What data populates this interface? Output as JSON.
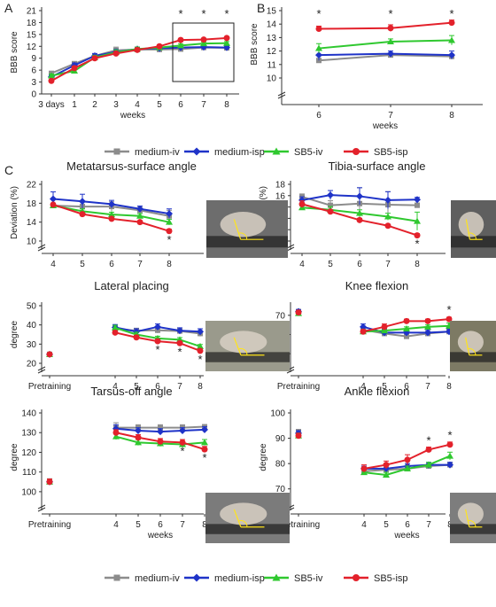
{
  "panel_letters": {
    "a": "A",
    "b": "B",
    "c": "C"
  },
  "colors": {
    "medium-iv": "#8c8c8c",
    "medium-isp": "#1f33c8",
    "SB5-iv": "#2fc82f",
    "SB5-isp": "#e3212b"
  },
  "legend": {
    "items": [
      {
        "key": "medium-iv",
        "label": "medium-iv",
        "marker": "square"
      },
      {
        "key": "medium-isp",
        "label": "medium-isp",
        "marker": "diamond"
      },
      {
        "key": "SB5-iv",
        "label": "SB5-iv",
        "marker": "triangle"
      },
      {
        "key": "SB5-isp",
        "label": "SB5-isp",
        "marker": "circle"
      }
    ]
  },
  "chart_data": [
    {
      "id": "A",
      "type": "line",
      "title": "",
      "xlabel": "weeks",
      "ylabel": "BBB score",
      "categories": [
        "3 days",
        "1",
        "2",
        "3",
        "4",
        "5",
        "6",
        "7",
        "8"
      ],
      "ylim": [
        0,
        21
      ],
      "yticks": [
        0,
        3,
        6,
        9,
        12,
        15,
        18,
        21
      ],
      "series": [
        {
          "name": "medium-iv",
          "values": [
            5.2,
            7.6,
            9.6,
            11.0,
            11.2,
            11.2,
            11.3,
            11.7,
            11.6
          ],
          "errors": [
            0.5,
            0.6,
            0.5,
            0.8,
            0.6,
            0.5,
            0.4,
            0.4,
            0.3
          ]
        },
        {
          "name": "medium-isp",
          "values": [
            4.3,
            7.2,
            9.6,
            10.6,
            11.3,
            11.5,
            11.7,
            11.8,
            11.7
          ],
          "errors": [
            0.4,
            0.6,
            0.6,
            0.6,
            0.5,
            0.4,
            0.4,
            0.4,
            0.4
          ]
        },
        {
          "name": "SB5-iv",
          "values": [
            4.6,
            5.8,
            9.2,
            10.5,
            11.3,
            11.7,
            12.2,
            12.7,
            12.8
          ],
          "errors": [
            0.4,
            0.5,
            0.5,
            0.6,
            0.5,
            0.4,
            0.4,
            0.4,
            0.4
          ]
        },
        {
          "name": "SB5-isp",
          "values": [
            3.3,
            6.5,
            9.0,
            10.2,
            11.1,
            12.0,
            13.6,
            13.7,
            14.1
          ],
          "errors": [
            0.3,
            0.5,
            0.5,
            0.5,
            0.5,
            0.4,
            0.3,
            0.3,
            0.3
          ]
        }
      ],
      "significance": [
        {
          "x": "6",
          "label": "*"
        },
        {
          "x": "7",
          "label": "*"
        },
        {
          "x": "8",
          "label": "*"
        }
      ]
    },
    {
      "id": "B",
      "type": "line",
      "title": "",
      "xlabel": "weeks",
      "ylabel": "BBB score",
      "categories": [
        "6",
        "7",
        "8"
      ],
      "ylim": [
        10,
        15
      ],
      "yticks": [
        10,
        11,
        12,
        13,
        14,
        15
      ],
      "series": [
        {
          "name": "medium-iv",
          "values": [
            11.3,
            11.7,
            11.6
          ],
          "errors": [
            0.15,
            0.1,
            0.1
          ]
        },
        {
          "name": "medium-isp",
          "values": [
            11.7,
            11.8,
            11.7
          ],
          "errors": [
            0.4,
            0.2,
            0.3
          ]
        },
        {
          "name": "SB5-iv",
          "values": [
            12.2,
            12.7,
            12.8
          ],
          "errors": [
            0.35,
            0.2,
            0.35
          ]
        },
        {
          "name": "SB5-isp",
          "values": [
            13.65,
            13.7,
            14.1
          ],
          "errors": [
            0.2,
            0.25,
            0.2
          ]
        }
      ],
      "significance": [
        {
          "x": "6",
          "label": "*"
        },
        {
          "x": "7",
          "label": "*"
        },
        {
          "x": "8",
          "label": "*"
        }
      ]
    },
    {
      "id": "C1",
      "type": "line",
      "title": "Metatarsus-surface angle",
      "xlabel": "",
      "ylabel": "Deviation (%)",
      "categories": [
        "4",
        "5",
        "6",
        "7",
        "8"
      ],
      "ylim": [
        10,
        22
      ],
      "yticks": [
        10,
        14,
        18,
        22
      ],
      "series": [
        {
          "name": "medium-iv",
          "values": [
            17.5,
            17.3,
            17.3,
            16.5,
            15.3
          ],
          "errors": [
            0.4,
            1.2,
            1.0,
            0.8,
            1.2
          ]
        },
        {
          "name": "medium-isp",
          "values": [
            18.9,
            18.4,
            17.8,
            16.8,
            15.8
          ],
          "errors": [
            1.5,
            1.5,
            0.8,
            0.6,
            1.0
          ]
        },
        {
          "name": "SB5-iv",
          "values": [
            17.5,
            16.3,
            15.6,
            15.3,
            14.0
          ],
          "errors": [
            0.4,
            0.5,
            0.5,
            0.5,
            0.6
          ]
        },
        {
          "name": "SB5-isp",
          "values": [
            17.7,
            15.7,
            14.7,
            14.0,
            12.1
          ],
          "errors": [
            0.3,
            0.3,
            0.3,
            0.3,
            0.4
          ]
        }
      ],
      "significance": [
        {
          "x": "8",
          "label": "*"
        }
      ]
    },
    {
      "id": "C2",
      "type": "line",
      "title": "Tibia-surface angle",
      "xlabel": "",
      "ylabel": "Deviation (%)",
      "categories": [
        "4",
        "5",
        "6",
        "7",
        "8"
      ],
      "ylim": [
        8,
        18
      ],
      "yticks": [
        8,
        10,
        12,
        14,
        16,
        18
      ],
      "series": [
        {
          "name": "medium-iv",
          "values": [
            15.8,
            14.3,
            14.6,
            14.4,
            14.3
          ],
          "errors": [
            0.5,
            0.8,
            2.8,
            2.3,
            0.4
          ]
        },
        {
          "name": "medium-isp",
          "values": [
            15.2,
            16.1,
            15.9,
            15.2,
            15.3
          ],
          "errors": [
            0.6,
            0.8,
            1.5,
            1.5,
            0.4
          ]
        },
        {
          "name": "SB5-iv",
          "values": [
            13.9,
            13.5,
            12.9,
            12.3,
            11.5
          ],
          "errors": [
            0.3,
            0.6,
            0.6,
            0.6,
            1.6
          ]
        },
        {
          "name": "SB5-isp",
          "values": [
            14.5,
            13.2,
            11.7,
            10.7,
            9.0
          ],
          "errors": [
            0.6,
            0.3,
            0.3,
            0.2,
            0.3
          ]
        }
      ],
      "significance": [
        {
          "x": "8",
          "label": "*"
        }
      ]
    },
    {
      "id": "C3",
      "type": "line",
      "title": "Lateral placing",
      "xlabel": "",
      "ylabel": "degree",
      "categories": [
        "Pretraining",
        "4",
        "5",
        "6",
        "7",
        "8"
      ],
      "ylim": [
        20,
        50
      ],
      "yticks": [
        20,
        30,
        40,
        50
      ],
      "series": [
        {
          "name": "medium-iv",
          "values": [
            24.7,
            38.0,
            37.0,
            37.2,
            36.8,
            35.5
          ],
          "errors": [
            0.5,
            1.5,
            1.3,
            1.5,
            1.5,
            1.5
          ]
        },
        {
          "name": "medium-isp",
          "values": [
            24.7,
            38.7,
            36.5,
            39.0,
            37.0,
            36.5
          ],
          "errors": [
            0.5,
            1.5,
            1.5,
            1.5,
            1.5,
            1.5
          ]
        },
        {
          "name": "SB5-iv",
          "values": [
            24.7,
            38.5,
            35.0,
            33.0,
            32.3,
            28.8
          ],
          "errors": [
            0.5,
            1.3,
            1.2,
            1.1,
            1.1,
            1.0
          ]
        },
        {
          "name": "SB5-isp",
          "values": [
            24.7,
            36.0,
            33.5,
            31.5,
            30.5,
            26.5
          ],
          "errors": [
            0.5,
            1.0,
            1.0,
            1.0,
            1.0,
            1.0
          ]
        }
      ],
      "significance": [
        {
          "x": "6",
          "label": "*"
        },
        {
          "x": "7",
          "label": "*"
        },
        {
          "x": "8",
          "label": "*"
        }
      ]
    },
    {
      "id": "C4",
      "type": "line",
      "title": "Knee flexion",
      "xlabel": "",
      "ylabel": "degree",
      "categories": [
        "Pretraining",
        "4",
        "5",
        "6",
        "7",
        "8"
      ],
      "ylim": [
        45,
        75
      ],
      "yticks": [
        50,
        60,
        70
      ],
      "series": [
        {
          "name": "medium-iv",
          "values": [
            72.0,
            62.5,
            60.5,
            59.0,
            60.5,
            61.5
          ],
          "errors": [
            1.0,
            1.5,
            1.0,
            1.2,
            1.2,
            1.2
          ]
        },
        {
          "name": "medium-isp",
          "values": [
            72.0,
            64.0,
            61.0,
            61.0,
            61.0,
            61.5
          ],
          "errors": [
            1.0,
            1.5,
            1.5,
            1.5,
            1.5,
            1.5
          ]
        },
        {
          "name": "SB5-iv",
          "values": [
            71.0,
            61.5,
            62.0,
            63.0,
            64.0,
            64.5
          ],
          "errors": [
            1.0,
            1.0,
            1.0,
            1.0,
            1.0,
            1.5
          ]
        },
        {
          "name": "SB5-isp",
          "values": [
            71.5,
            61.5,
            64.0,
            67.0,
            67.0,
            68.0
          ],
          "errors": [
            1.0,
            1.0,
            1.5,
            1.0,
            1.0,
            1.0
          ]
        }
      ],
      "significance": [
        {
          "x": "8",
          "label": "*"
        }
      ]
    },
    {
      "id": "C5",
      "type": "line",
      "title": "Tarsus-off angle",
      "xlabel": "weeks",
      "ylabel": "degree",
      "categories": [
        "Pretraining",
        "4",
        "5",
        "6",
        "7",
        "8"
      ],
      "ylim": [
        95,
        140
      ],
      "yticks": [
        100,
        110,
        120,
        130,
        140
      ],
      "series": [
        {
          "name": "medium-iv",
          "values": [
            105,
            132.5,
            132.5,
            132.5,
            132.5,
            133.0
          ],
          "errors": [
            1.5,
            2.5,
            1.5,
            1.5,
            1.5,
            1.0
          ]
        },
        {
          "name": "medium-isp",
          "values": [
            105,
            132.0,
            131.0,
            130.5,
            131.0,
            131.5
          ],
          "errors": [
            1.5,
            2.0,
            1.5,
            1.5,
            1.5,
            1.5
          ]
        },
        {
          "name": "SB5-iv",
          "values": [
            105,
            128.0,
            125.0,
            124.5,
            124.0,
            125.0
          ],
          "errors": [
            1.5,
            1.5,
            1.5,
            1.5,
            1.5,
            1.5
          ]
        },
        {
          "name": "SB5-isp",
          "values": [
            105,
            130.0,
            127.5,
            125.5,
            125.0,
            121.5
          ],
          "errors": [
            1.5,
            1.5,
            1.5,
            1.5,
            1.5,
            1.5
          ]
        }
      ],
      "significance": [
        {
          "x": "7",
          "label": "*"
        },
        {
          "x": "8",
          "label": "*"
        }
      ]
    },
    {
      "id": "C6",
      "type": "line",
      "title": "Ankle flexion",
      "xlabel": "weeks",
      "ylabel": "degree",
      "categories": [
        "Pretraining",
        "4",
        "5",
        "6",
        "7",
        "8"
      ],
      "ylim": [
        65,
        100
      ],
      "yticks": [
        70,
        80,
        90,
        100
      ],
      "series": [
        {
          "name": "medium-iv",
          "values": [
            92.5,
            77.0,
            77.5,
            78.0,
            79.0,
            79.5
          ],
          "errors": [
            1.0,
            1.0,
            1.0,
            1.0,
            1.0,
            1.0
          ]
        },
        {
          "name": "medium-isp",
          "values": [
            92.0,
            78.0,
            78.0,
            79.0,
            79.5,
            79.5
          ],
          "errors": [
            1.0,
            1.0,
            1.0,
            1.0,
            1.0,
            1.0
          ]
        },
        {
          "name": "SB5-iv",
          "values": [
            91.0,
            76.5,
            75.5,
            78.0,
            79.5,
            83.0
          ],
          "errors": [
            1.0,
            1.0,
            1.0,
            1.0,
            1.0,
            1.5
          ]
        },
        {
          "name": "SB5-isp",
          "values": [
            91.0,
            78.0,
            79.5,
            81.5,
            85.5,
            87.5
          ],
          "errors": [
            1.0,
            1.5,
            1.5,
            2.0,
            1.0,
            1.0
          ]
        }
      ],
      "significance": [
        {
          "x": "7",
          "label": "*"
        },
        {
          "x": "8",
          "label": "*"
        }
      ]
    }
  ]
}
